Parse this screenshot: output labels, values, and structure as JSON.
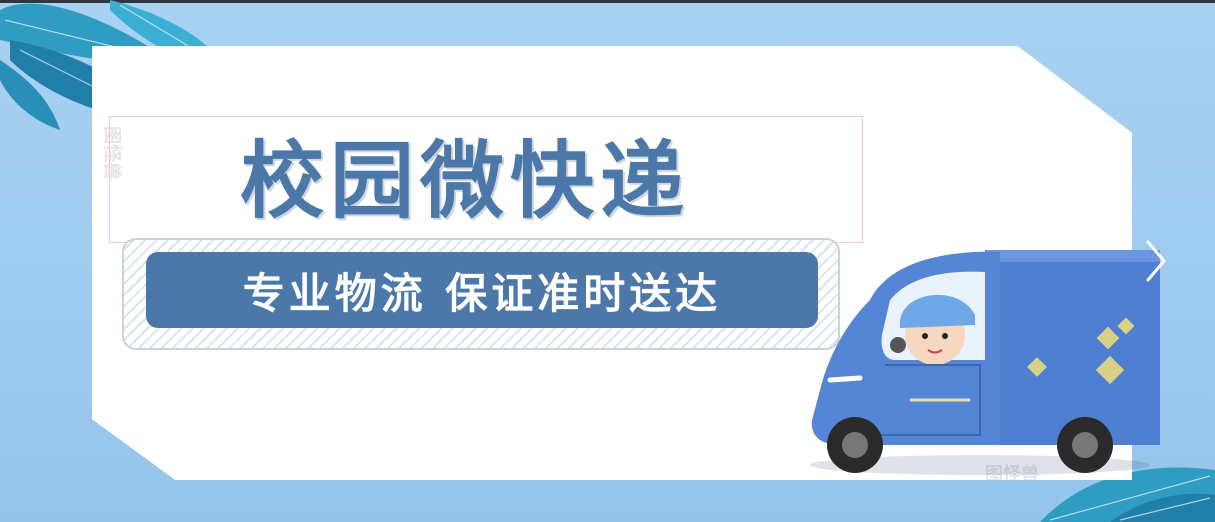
{
  "banner": {
    "title": "校园微快递",
    "subtitle": "专业物流 保证准时送达",
    "watermark_label": "图怪兽"
  },
  "colors": {
    "background": "#9cc9ec",
    "accent": "#4b78a8",
    "card": "#ffffff",
    "leaf": "#2f9cc2",
    "truck": "#4f7fd1"
  },
  "carousel": {
    "next_icon": "chevron-right-icon"
  }
}
